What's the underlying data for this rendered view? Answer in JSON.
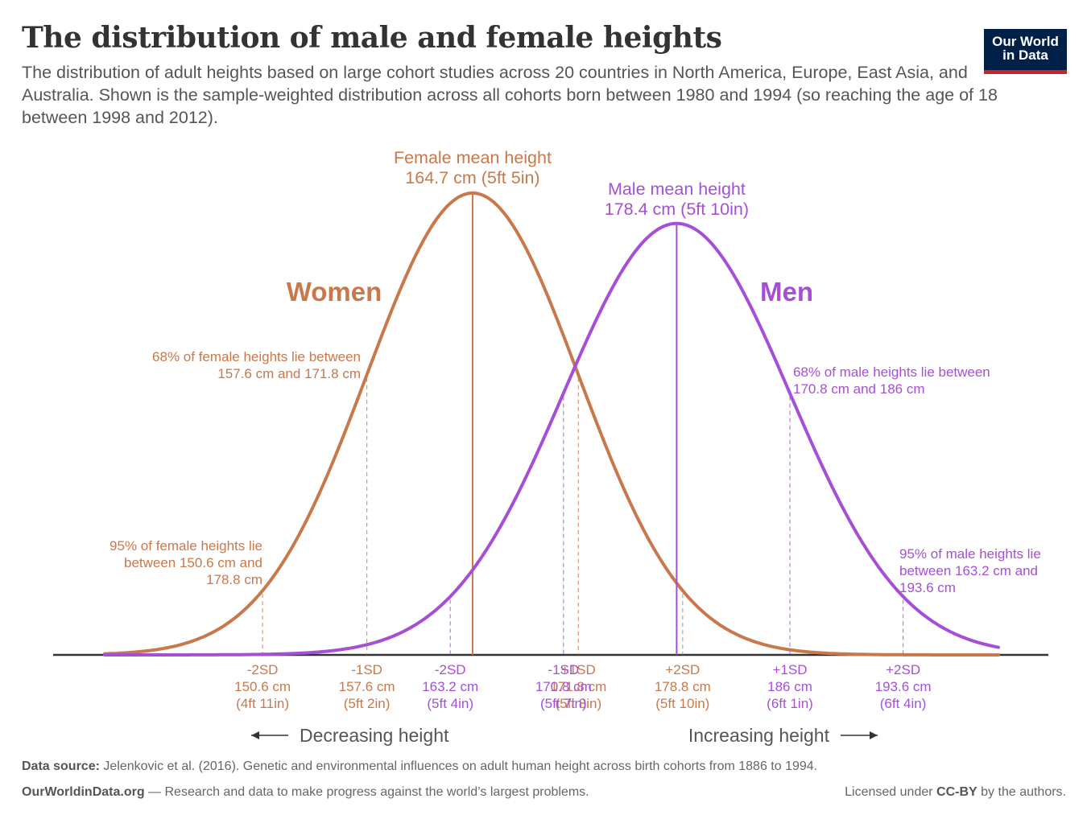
{
  "header": {
    "title": "The distribution of male and female heights",
    "subtitle": "The distribution of adult heights based on large cohort studies across 20 countries in North America, Europe, East Asia, and Australia. Shown is the sample-weighted distribution across all cohorts born between 1980 and 1994 (so reaching the age of 18 between 1998 and 2012).",
    "logo_line1": "Our World",
    "logo_line2": "in Data"
  },
  "colors": {
    "female": "#c8784a",
    "male": "#a64fd6",
    "axis": "#333333",
    "text": "#555555"
  },
  "chart_data": {
    "type": "line",
    "xlabel_left": "Decreasing height",
    "xlabel_right": "Increasing height",
    "xlim": [
      140,
      200
    ],
    "series": [
      {
        "name": "Women",
        "key": "female",
        "mean": 164.7,
        "sd": 7.1,
        "mean_label": [
          "Female mean height",
          "164.7 cm (5ft 5in)"
        ],
        "ticks": [
          {
            "sd": "-2SD",
            "cm": 150.6,
            "cm_label": "150.6 cm",
            "ft": "(4ft 11in)"
          },
          {
            "sd": "-1SD",
            "cm": 157.6,
            "cm_label": "157.6 cm",
            "ft": "(5ft 2in)"
          },
          {
            "sd": "+1SD",
            "cm": 171.8,
            "cm_label": "171.8 cm",
            "ft": "(5ft 8in)"
          },
          {
            "sd": "+2SD",
            "cm": 178.8,
            "cm_label": "178.8 cm",
            "ft": "(5ft 10in)"
          }
        ],
        "note68": [
          "68% of female heights lie between",
          "157.6 cm and 171.8 cm"
        ],
        "note95": [
          "95% of female heights lie",
          "between 150.6 cm and",
          "178.8 cm"
        ]
      },
      {
        "name": "Men",
        "key": "male",
        "mean": 178.4,
        "sd": 7.6,
        "mean_label": [
          "Male mean height",
          "178.4 cm (5ft 10in)"
        ],
        "ticks": [
          {
            "sd": "-2SD",
            "cm": 163.2,
            "cm_label": "163.2 cm",
            "ft": "(5ft 4in)"
          },
          {
            "sd": "-1SD",
            "cm": 170.8,
            "cm_label": "170.8 cm",
            "ft": "(5ft 7in)"
          },
          {
            "sd": "+1SD",
            "cm": 186,
            "cm_label": "186 cm",
            "ft": "(6ft 1in)"
          },
          {
            "sd": "+2SD",
            "cm": 193.6,
            "cm_label": "193.6 cm",
            "ft": "(6ft 4in)"
          }
        ],
        "note68": [
          "68% of male heights lie between",
          "170.8 cm and 186 cm"
        ],
        "note95": [
          "95% of male heights lie",
          "between 163.2 cm and",
          "193.6 cm"
        ]
      }
    ]
  },
  "footer": {
    "source_label": "Data source:",
    "source_text": "Jelenkovic et al. (2016). Genetic and environmental influences on adult human height across birth cohorts from 1886 to 1994.",
    "site": "OurWorldinData.org",
    "site_text": "— Research and data to make progress against the world’s largest problems.",
    "license_pre": "Licensed under",
    "license_bold": "CC-BY",
    "license_post": "by the authors."
  }
}
